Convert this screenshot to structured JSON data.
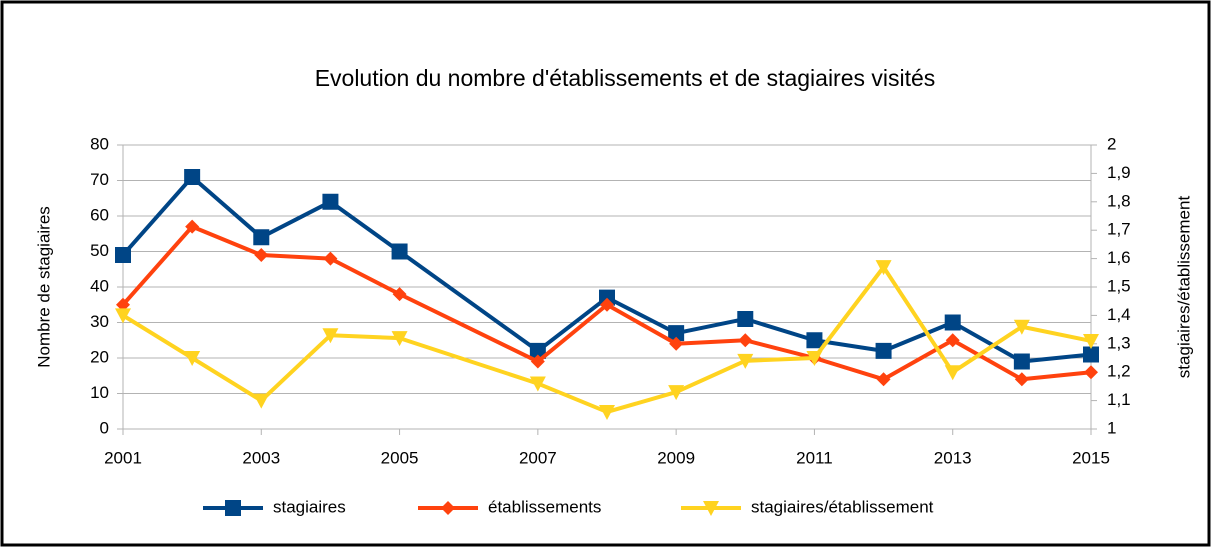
{
  "chart_data": {
    "type": "line",
    "title": "Evolution du nombre d'établissements et de stagiaires visités",
    "y_label": "Nombre de stagiaires",
    "y2_label": "stagiaires/établissement",
    "x": [
      2001,
      2002,
      2003,
      2004,
      2005,
      2007,
      2008,
      2009,
      2010,
      2011,
      2012,
      2013,
      2014,
      2015
    ],
    "xlim": [
      2001,
      2015
    ],
    "xticks": [
      2001,
      2003,
      2005,
      2007,
      2009,
      2011,
      2013,
      2015
    ],
    "ylim": [
      0,
      80
    ],
    "yticks": [
      0,
      10,
      20,
      30,
      40,
      50,
      60,
      70,
      80
    ],
    "y2lim": [
      1,
      2
    ],
    "y2ticks": [
      1,
      {
        "value": 1.1,
        "label": "1,1"
      },
      {
        "value": 1.2,
        "label": "1,2"
      },
      {
        "value": 1.3,
        "label": "1,3"
      },
      {
        "value": 1.4,
        "label": "1,4"
      },
      {
        "value": 1.5,
        "label": "1,5"
      },
      {
        "value": 1.6,
        "label": "1,6"
      },
      {
        "value": 1.7,
        "label": "1,7"
      },
      {
        "value": 1.8,
        "label": "1,8"
      },
      {
        "value": 1.9,
        "label": "1,9"
      },
      2
    ],
    "grid": true,
    "legend": "bottom",
    "series": [
      {
        "name": "stagiaires",
        "color": "#004586",
        "marker": "square",
        "values": [
          49,
          71,
          54,
          64,
          50,
          22,
          37,
          27,
          31,
          25,
          22,
          30,
          19,
          21
        ]
      },
      {
        "name": "établissements",
        "color": "#ff420e",
        "marker": "diamond",
        "values": [
          35,
          57,
          49,
          48,
          38,
          19,
          35,
          24,
          25,
          20,
          14,
          25,
          14,
          16
        ]
      },
      {
        "name": "stagiaires/établissement",
        "color": "#ffd320",
        "marker": "triangle-down",
        "axis": "y2",
        "values": [
          1.4,
          1.25,
          1.1,
          1.33,
          1.32,
          1.16,
          1.06,
          1.13,
          1.24,
          1.25,
          1.57,
          1.2,
          1.36,
          1.31
        ]
      }
    ]
  }
}
